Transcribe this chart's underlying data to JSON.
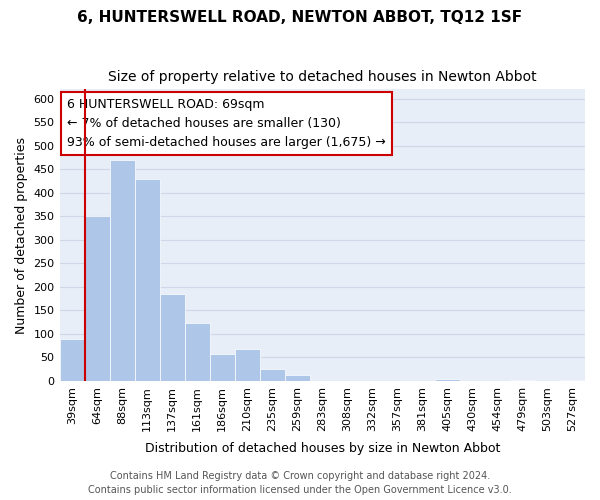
{
  "title": "6, HUNTERSWELL ROAD, NEWTON ABBOT, TQ12 1SF",
  "subtitle": "Size of property relative to detached houses in Newton Abbot",
  "xlabel": "Distribution of detached houses by size in Newton Abbot",
  "ylabel": "Number of detached properties",
  "bar_labels": [
    "39sqm",
    "64sqm",
    "88sqm",
    "113sqm",
    "137sqm",
    "161sqm",
    "186sqm",
    "210sqm",
    "235sqm",
    "259sqm",
    "283sqm",
    "308sqm",
    "332sqm",
    "357sqm",
    "381sqm",
    "405sqm",
    "430sqm",
    "454sqm",
    "479sqm",
    "503sqm",
    "527sqm"
  ],
  "bar_values": [
    90,
    350,
    470,
    430,
    185,
    123,
    57,
    68,
    25,
    12,
    0,
    0,
    0,
    0,
    0,
    3,
    0,
    0,
    2,
    0,
    2
  ],
  "bar_color": "#aec6e8",
  "vline_x": 1,
  "vline_color": "#cc0000",
  "ylim": [
    0,
    620
  ],
  "yticks": [
    0,
    50,
    100,
    150,
    200,
    250,
    300,
    350,
    400,
    450,
    500,
    550,
    600
  ],
  "annotation_line1": "6 HUNTERSWELL ROAD: 69sqm",
  "annotation_line2": "← 7% of detached houses are smaller (130)",
  "annotation_line3": "93% of semi-detached houses are larger (1,675) →",
  "footer_line1": "Contains HM Land Registry data © Crown copyright and database right 2024.",
  "footer_line2": "Contains public sector information licensed under the Open Government Licence v3.0.",
  "title_fontsize": 11,
  "subtitle_fontsize": 10,
  "axis_label_fontsize": 9,
  "tick_fontsize": 8,
  "annotation_fontsize": 9,
  "footer_fontsize": 7,
  "grid_color": "#d0d8e8",
  "background_color": "#e8eef8"
}
